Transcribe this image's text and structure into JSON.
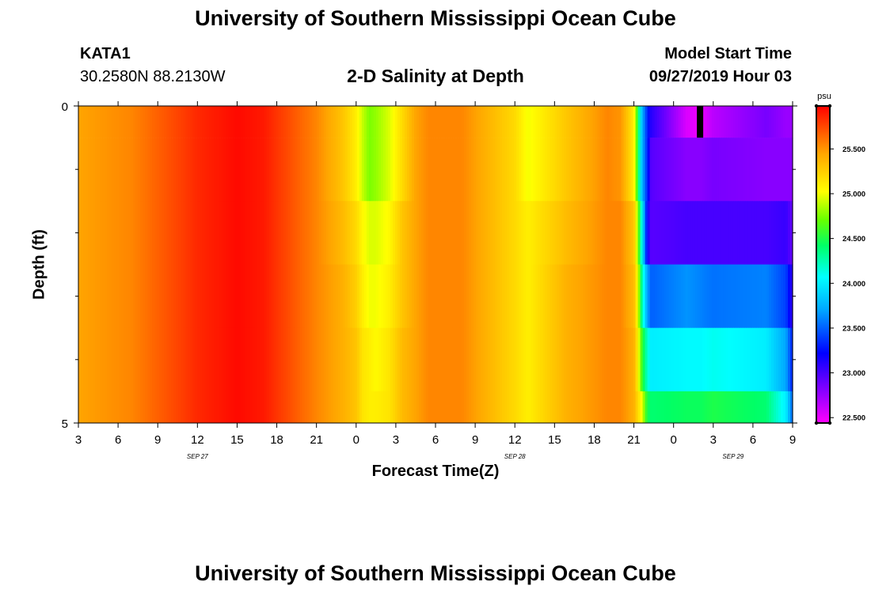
{
  "header": {
    "main_title": "University of Southern Mississippi Ocean Cube",
    "station_id": "KATA1",
    "station_coords": "30.2580N 88.2130W",
    "model_start_label": "Model Start Time",
    "model_start_value": "09/27/2019 Hour 03",
    "footer_title": "University of Southern Mississippi Ocean Cube"
  },
  "chart_data": {
    "type": "heatmap",
    "title": "2-D Salinity at Depth",
    "xlabel": "Forecast Time(Z)",
    "ylabel": "Depth (ft)",
    "units": "psu",
    "x_range_hours": [
      0,
      54
    ],
    "y_range_ft": [
      0,
      5
    ],
    "x_ticks": [
      "3",
      "6",
      "9",
      "12",
      "15",
      "18",
      "21",
      "0",
      "3",
      "6",
      "9",
      "12",
      "15",
      "18",
      "21",
      "0",
      "3",
      "6",
      "9"
    ],
    "y_tick_labels": [
      "0",
      "5"
    ],
    "y_minor_ticks": [
      1,
      2,
      3,
      4
    ],
    "date_labels": [
      {
        "text": "SEP 27",
        "hour": 9
      },
      {
        "text": "SEP 28",
        "hour": 33
      },
      {
        "text": "SEP 29",
        "hour": 49.5
      }
    ],
    "colorbar": {
      "labels": [
        "25.500",
        "25.000",
        "24.500",
        "24.000",
        "23.500",
        "23.000",
        "22.500"
      ],
      "min": 22.44,
      "max": 25.98
    },
    "depth_layers_ft": [
      0,
      0.5,
      1.5,
      2.5,
      3.5,
      4.5
    ],
    "profile_hours": [
      0,
      4,
      9,
      12,
      14,
      18,
      20,
      21,
      21.5,
      22,
      22.5,
      23.5,
      24.5,
      25.5,
      26.5,
      29,
      33,
      34,
      37,
      40,
      41,
      42,
      42.3,
      42.6,
      43,
      43.3,
      46,
      47,
      48,
      52,
      53.5,
      54
    ],
    "profiles": [
      [
        25.45,
        25.45,
        25.45,
        25.45,
        25.45,
        25.45
      ],
      [
        25.55,
        25.55,
        25.55,
        25.55,
        25.55,
        25.55
      ],
      [
        25.85,
        25.85,
        25.85,
        25.85,
        25.85,
        25.85
      ],
      [
        25.95,
        25.95,
        25.95,
        25.95,
        25.95,
        25.95
      ],
      [
        25.9,
        25.9,
        25.9,
        25.9,
        25.9,
        25.9
      ],
      [
        25.55,
        25.55,
        25.55,
        25.55,
        25.55,
        25.55
      ],
      [
        25.3,
        25.3,
        25.35,
        25.4,
        25.4,
        25.4
      ],
      [
        25.1,
        25.1,
        25.2,
        25.25,
        25.3,
        25.3
      ],
      [
        24.9,
        24.9,
        25.05,
        25.1,
        25.15,
        25.15
      ],
      [
        24.75,
        24.75,
        24.95,
        25.0,
        25.1,
        25.1
      ],
      [
        24.8,
        24.8,
        24.95,
        25.0,
        25.05,
        25.1
      ],
      [
        24.95,
        24.95,
        25.05,
        25.1,
        25.15,
        25.15
      ],
      [
        25.2,
        25.2,
        25.3,
        25.3,
        25.35,
        25.35
      ],
      [
        25.45,
        25.45,
        25.45,
        25.45,
        25.45,
        25.45
      ],
      [
        25.55,
        25.55,
        25.55,
        25.55,
        25.55,
        25.55
      ],
      [
        25.55,
        25.55,
        25.55,
        25.55,
        25.55,
        25.55
      ],
      [
        25.2,
        25.2,
        25.2,
        25.2,
        25.2,
        25.2
      ],
      [
        25.0,
        25.0,
        25.1,
        25.1,
        25.1,
        25.1
      ],
      [
        25.3,
        25.3,
        25.35,
        25.4,
        25.4,
        25.4
      ],
      [
        25.55,
        25.55,
        25.55,
        25.55,
        25.55,
        25.55
      ],
      [
        25.5,
        25.5,
        25.55,
        25.55,
        25.55,
        25.55
      ],
      [
        25.1,
        25.1,
        25.3,
        25.35,
        25.4,
        25.4
      ],
      [
        24.5,
        24.5,
        24.8,
        25.0,
        25.1,
        25.2
      ],
      [
        23.8,
        23.8,
        24.1,
        24.3,
        24.6,
        25.0
      ],
      [
        23.35,
        23.35,
        23.2,
        23.7,
        24.2,
        24.5
      ],
      [
        23.1,
        22.95,
        22.95,
        23.5,
        24.0,
        24.4
      ],
      [
        22.55,
        22.8,
        23.0,
        23.65,
        24.05,
        24.45
      ],
      [
        22.5,
        22.8,
        23.0,
        23.6,
        24.05,
        24.45
      ],
      [
        22.65,
        22.85,
        23.0,
        23.55,
        24.1,
        24.5
      ],
      [
        22.85,
        22.8,
        23.0,
        23.6,
        24.0,
        24.4
      ],
      [
        22.75,
        22.8,
        23.05,
        23.4,
        23.7,
        24.0
      ],
      [
        22.75,
        22.8,
        22.9,
        23.05,
        23.3,
        23.5
      ]
    ],
    "missing_marker": {
      "hour": 47,
      "depth_ft": [
        0,
        0.5
      ]
    }
  }
}
